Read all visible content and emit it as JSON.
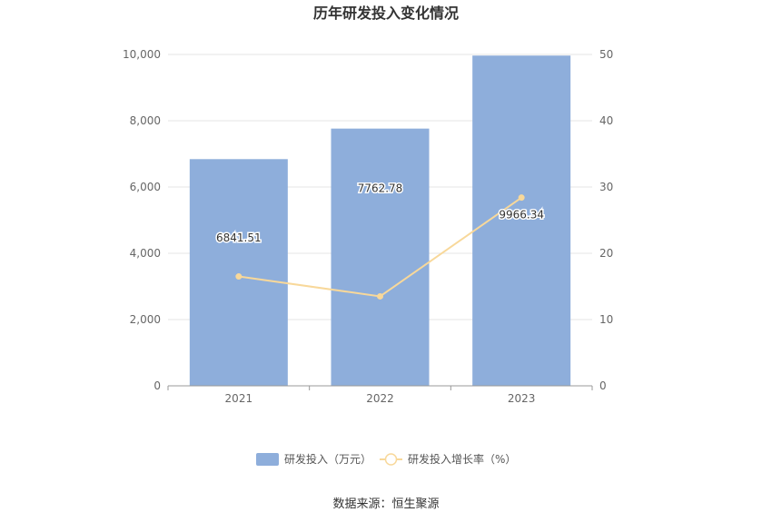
{
  "chart_data": {
    "type": "bar",
    "title": "历年研发投入变化情况",
    "categories": [
      "2021",
      "2022",
      "2023"
    ],
    "series": [
      {
        "name": "研发投入（万元）",
        "type": "bar",
        "axis": "left",
        "color": "#8eaedb",
        "values": [
          6841.51,
          7762.78,
          9966.34
        ],
        "labels": [
          "6841.51",
          "7762.78",
          "9966.34"
        ]
      },
      {
        "name": "研发投入增长率（%）",
        "type": "line",
        "axis": "right",
        "color": "#f8d89a",
        "values": [
          16.5,
          13.5,
          28.4
        ]
      }
    ],
    "y_left": {
      "min": 0,
      "max": 10000,
      "ticks": [
        "0",
        "2,000",
        "4,000",
        "6,000",
        "8,000",
        "10,000"
      ],
      "tick_values": [
        0,
        2000,
        4000,
        6000,
        8000,
        10000
      ]
    },
    "y_right": {
      "min": 0,
      "max": 50,
      "ticks": [
        "0",
        "10",
        "20",
        "30",
        "40",
        "50"
      ],
      "tick_values": [
        0,
        10,
        20,
        30,
        40,
        50
      ]
    },
    "grid": true,
    "legend_position": "bottom-center"
  },
  "source": "数据来源：恒生聚源"
}
